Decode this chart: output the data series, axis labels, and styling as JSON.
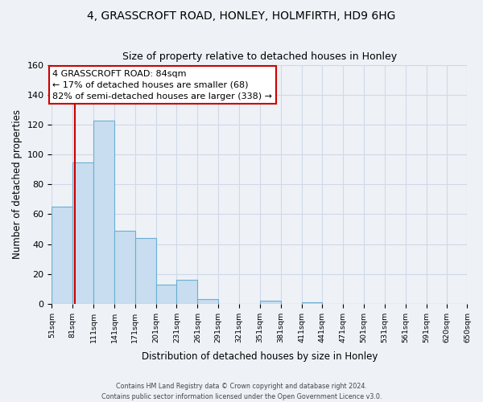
{
  "title1": "4, GRASSCROFT ROAD, HONLEY, HOLMFIRTH, HD9 6HG",
  "title2": "Size of property relative to detached houses in Honley",
  "xlabel": "Distribution of detached houses by size in Honley",
  "ylabel": "Number of detached properties",
  "bin_edges": [
    51,
    81,
    111,
    141,
    171,
    201,
    231,
    261,
    291,
    321,
    351,
    381,
    411,
    441,
    471,
    501,
    531,
    561,
    591,
    620,
    650
  ],
  "bar_heights": [
    65,
    95,
    123,
    49,
    44,
    13,
    16,
    3,
    0,
    0,
    2,
    0,
    1,
    0,
    0,
    0,
    0,
    0,
    0,
    0
  ],
  "bar_color": "#c8ddef",
  "bar_edge_color": "#6aafd4",
  "vline_color": "#cc0000",
  "vline_x": 84,
  "ylim": [
    0,
    160
  ],
  "annotation_title": "4 GRASSCROFT ROAD: 84sqm",
  "annotation_line1": "← 17% of detached houses are smaller (68)",
  "annotation_line2": "82% of semi-detached houses are larger (338) →",
  "annotation_box_color": "#ffffff",
  "annotation_box_edge": "#cc0000",
  "tick_labels": [
    "51sqm",
    "81sqm",
    "111sqm",
    "141sqm",
    "171sqm",
    "201sqm",
    "231sqm",
    "261sqm",
    "291sqm",
    "321sqm",
    "351sqm",
    "381sqm",
    "411sqm",
    "441sqm",
    "471sqm",
    "501sqm",
    "531sqm",
    "561sqm",
    "591sqm",
    "620sqm",
    "650sqm"
  ],
  "yticks": [
    0,
    20,
    40,
    60,
    80,
    100,
    120,
    140,
    160
  ],
  "footer1": "Contains HM Land Registry data © Crown copyright and database right 2024.",
  "footer2": "Contains public sector information licensed under the Open Government Licence v3.0.",
  "background_color": "#eef2f7",
  "grid_color": "#d0d8e8"
}
